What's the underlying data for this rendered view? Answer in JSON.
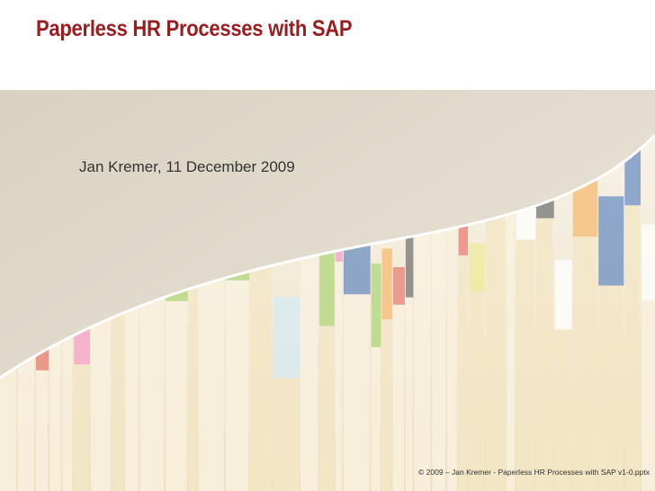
{
  "slide": {
    "title": "Paperless HR Processes with SAP",
    "subtitle": "Jan Kremer, 11 December 2009",
    "footer": "© 2009 – Jan Kremer - Paperless HR Processes with SAP v1-0.pptx"
  }
}
